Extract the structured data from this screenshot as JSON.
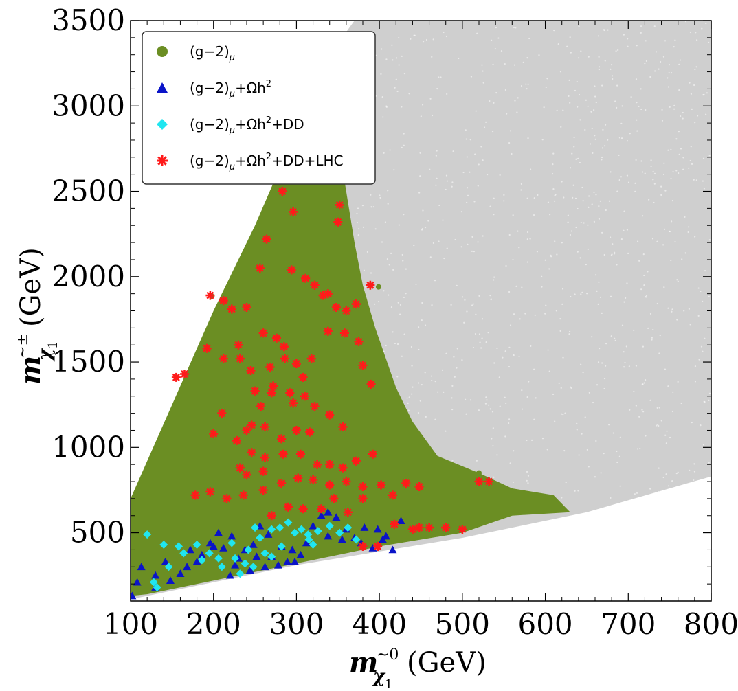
{
  "chart_data": {
    "type": "scatter",
    "title": "",
    "xlabel": {
      "main": "m",
      "sub": "χ",
      "subsub": "1",
      "sup": "~0",
      "unit": "(GeV)"
    },
    "ylabel": {
      "main": "m",
      "sub": "χ",
      "subsub": "1",
      "sup": "~±",
      "unit": "(GeV)"
    },
    "xlim": [
      100,
      800
    ],
    "ylim": [
      100,
      3500
    ],
    "xticks": [
      100,
      200,
      300,
      400,
      500,
      600,
      700,
      800
    ],
    "yticks": [
      500,
      1000,
      1500,
      2000,
      2500,
      3000,
      3500
    ],
    "grid": false,
    "legend_position": "top-left",
    "background_region": {
      "color": "#cfcfcf",
      "description_polygon": [
        [
          100,
          560
        ],
        [
          100,
          700
        ],
        [
          200,
          1700
        ],
        [
          290,
          2700
        ],
        [
          340,
          3300
        ],
        [
          370,
          3500
        ],
        [
          800,
          3500
        ],
        [
          800,
          830
        ],
        [
          650,
          620
        ],
        [
          500,
          470
        ],
        [
          300,
          310
        ],
        [
          100,
          110
        ]
      ]
    },
    "series": [
      {
        "name": "(g−2)μ",
        "marker": "circle",
        "color": "#6b8e23",
        "region_polygon": [
          [
            100,
            130
          ],
          [
            100,
            700
          ],
          [
            150,
            1250
          ],
          [
            200,
            1800
          ],
          [
            250,
            2300
          ],
          [
            290,
            2750
          ],
          [
            330,
            3200
          ],
          [
            350,
            3250
          ],
          [
            355,
            2650
          ],
          [
            370,
            2200
          ],
          [
            380,
            1950
          ],
          [
            395,
            1700
          ],
          [
            420,
            1350
          ],
          [
            440,
            1150
          ],
          [
            470,
            950
          ],
          [
            520,
            850
          ],
          [
            560,
            760
          ],
          [
            610,
            720
          ],
          [
            630,
            620
          ],
          [
            560,
            600
          ],
          [
            500,
            500
          ],
          [
            400,
            420
          ],
          [
            300,
            320
          ],
          [
            200,
            220
          ],
          [
            120,
            140
          ]
        ],
        "values": [
          [
            198,
            1885
          ],
          [
            212,
            1860
          ],
          [
            222,
            1800
          ],
          [
            240,
            1810
          ],
          [
            256,
            2040
          ],
          [
            264,
            2225
          ],
          [
            284,
            2500
          ],
          [
            297,
            2380
          ],
          [
            318,
            2830
          ],
          [
            347,
            2570
          ],
          [
            348,
            2830
          ],
          [
            350,
            2330
          ],
          [
            352,
            2420
          ],
          [
            294,
            2040
          ],
          [
            310,
            1985
          ],
          [
            322,
            1950
          ],
          [
            330,
            1890
          ],
          [
            337,
            1890
          ],
          [
            348,
            1830
          ],
          [
            360,
            1810
          ],
          [
            372,
            1840
          ],
          [
            389,
            1950
          ],
          [
            399,
            1940
          ],
          [
            210,
            1200
          ],
          [
            165,
            1430
          ],
          [
            155,
            1410
          ],
          [
            192,
            1580
          ],
          [
            210,
            1520
          ],
          [
            232,
            1520
          ],
          [
            200,
            1080
          ],
          [
            260,
            1670
          ],
          [
            276,
            1630
          ],
          [
            286,
            1525
          ],
          [
            300,
            1490
          ],
          [
            318,
            1520
          ],
          [
            338,
            1670
          ],
          [
            358,
            1670
          ],
          [
            375,
            1620
          ],
          [
            380,
            1480
          ],
          [
            390,
            1370
          ],
          [
            250,
            1330
          ],
          [
            272,
            1360
          ],
          [
            292,
            1320
          ],
          [
            310,
            1310
          ],
          [
            322,
            1230
          ],
          [
            340,
            1190
          ],
          [
            356,
            1130
          ],
          [
            300,
            1100
          ],
          [
            316,
            1090
          ],
          [
            285,
            960
          ],
          [
            305,
            960
          ],
          [
            325,
            910
          ],
          [
            340,
            900
          ],
          [
            356,
            880
          ],
          [
            372,
            930
          ],
          [
            392,
            960
          ],
          [
            178,
            720
          ],
          [
            196,
            740
          ],
          [
            216,
            700
          ],
          [
            236,
            720
          ],
          [
            260,
            750
          ],
          [
            282,
            790
          ],
          [
            302,
            820
          ],
          [
            320,
            810
          ],
          [
            340,
            780
          ],
          [
            360,
            800
          ],
          [
            380,
            770
          ],
          [
            402,
            770
          ],
          [
            416,
            730
          ],
          [
            432,
            790
          ],
          [
            448,
            770
          ],
          [
            460,
            530
          ],
          [
            480,
            530
          ],
          [
            500,
            530
          ],
          [
            520,
            850
          ],
          [
            532,
            800
          ],
          [
            418,
            540
          ],
          [
            440,
            520
          ],
          [
            448,
            520
          ],
          [
            270,
            1320
          ],
          [
            228,
            1040
          ],
          [
            257,
            1240
          ],
          [
            246,
            1130
          ]
        ]
      },
      {
        "name": "(g−2)μ+Ωh²",
        "marker": "triangle",
        "color": "#0a14c8",
        "values": [
          [
            102,
            130
          ],
          [
            108,
            210
          ],
          [
            113,
            300
          ],
          [
            130,
            250
          ],
          [
            142,
            330
          ],
          [
            160,
            260
          ],
          [
            172,
            400
          ],
          [
            180,
            330
          ],
          [
            196,
            440
          ],
          [
            206,
            500
          ],
          [
            212,
            410
          ],
          [
            222,
            480
          ],
          [
            230,
            350
          ],
          [
            238,
            400
          ],
          [
            248,
            430
          ],
          [
            256,
            540
          ],
          [
            266,
            490
          ],
          [
            278,
            310
          ],
          [
            289,
            330
          ],
          [
            298,
            330
          ],
          [
            312,
            440
          ],
          [
            320,
            540
          ],
          [
            330,
            600
          ],
          [
            338,
            620
          ],
          [
            348,
            590
          ],
          [
            360,
            520
          ],
          [
            370,
            470
          ],
          [
            378,
            440
          ],
          [
            392,
            410
          ],
          [
            404,
            460
          ],
          [
            416,
            400
          ],
          [
            426,
            570
          ],
          [
            220,
            250
          ],
          [
            244,
            280
          ],
          [
            262,
            300
          ],
          [
            270,
            360
          ],
          [
            295,
            400
          ],
          [
            305,
            370
          ],
          [
            338,
            480
          ],
          [
            355,
            460
          ],
          [
            382,
            530
          ],
          [
            398,
            520
          ],
          [
            408,
            480
          ],
          [
            130,
            180
          ],
          [
            148,
            220
          ],
          [
            168,
            300
          ],
          [
            186,
            370
          ],
          [
            200,
            420
          ],
          [
            226,
            310
          ],
          [
            252,
            360
          ],
          [
            282,
            420
          ]
        ]
      },
      {
        "name": "(g−2)μ+Ωh²+DD",
        "marker": "diamond",
        "color": "#20e6f0",
        "values": [
          [
            120,
            490
          ],
          [
            128,
            210
          ],
          [
            132,
            180
          ],
          [
            140,
            430
          ],
          [
            146,
            300
          ],
          [
            158,
            420
          ],
          [
            164,
            380
          ],
          [
            180,
            430
          ],
          [
            186,
            340
          ],
          [
            195,
            380
          ],
          [
            206,
            350
          ],
          [
            210,
            300
          ],
          [
            222,
            440
          ],
          [
            226,
            350
          ],
          [
            238,
            320
          ],
          [
            242,
            400
          ],
          [
            250,
            530
          ],
          [
            256,
            470
          ],
          [
            262,
            380
          ],
          [
            270,
            520
          ],
          [
            280,
            530
          ],
          [
            290,
            560
          ],
          [
            298,
            500
          ],
          [
            306,
            520
          ],
          [
            314,
            490
          ],
          [
            326,
            510
          ],
          [
            340,
            540
          ],
          [
            352,
            500
          ],
          [
            362,
            530
          ],
          [
            372,
            460
          ],
          [
            315,
            460
          ],
          [
            320,
            430
          ],
          [
            232,
            260
          ],
          [
            248,
            300
          ],
          [
            270,
            360
          ],
          [
            282,
            420
          ]
        ]
      },
      {
        "name": "(g−2)μ+Ωh²+DD+LHC",
        "marker": "star",
        "color": "#ff1a1a",
        "values": [
          [
            196,
            1890
          ],
          [
            212,
            1860
          ],
          [
            222,
            1810
          ],
          [
            240,
            1820
          ],
          [
            256,
            2050
          ],
          [
            264,
            2220
          ],
          [
            283,
            2500
          ],
          [
            296,
            2380
          ],
          [
            318,
            2830
          ],
          [
            346,
            2570
          ],
          [
            348,
            2830
          ],
          [
            350,
            2320
          ],
          [
            352,
            2420
          ],
          [
            294,
            2040
          ],
          [
            311,
            1990
          ],
          [
            322,
            1950
          ],
          [
            332,
            1890
          ],
          [
            338,
            1900
          ],
          [
            348,
            1820
          ],
          [
            360,
            1800
          ],
          [
            372,
            1840
          ],
          [
            389,
            1950
          ],
          [
            210,
            1200
          ],
          [
            165,
            1430
          ],
          [
            155,
            1410
          ],
          [
            192,
            1580
          ],
          [
            212,
            1520
          ],
          [
            232,
            1520
          ],
          [
            200,
            1080
          ],
          [
            260,
            1670
          ],
          [
            276,
            1640
          ],
          [
            286,
            1520
          ],
          [
            300,
            1490
          ],
          [
            318,
            1520
          ],
          [
            338,
            1680
          ],
          [
            358,
            1670
          ],
          [
            375,
            1620
          ],
          [
            380,
            1480
          ],
          [
            390,
            1370
          ],
          [
            250,
            1330
          ],
          [
            272,
            1360
          ],
          [
            292,
            1320
          ],
          [
            310,
            1300
          ],
          [
            322,
            1240
          ],
          [
            340,
            1190
          ],
          [
            356,
            1120
          ],
          [
            300,
            1100
          ],
          [
            316,
            1090
          ],
          [
            284,
            960
          ],
          [
            305,
            960
          ],
          [
            325,
            900
          ],
          [
            340,
            900
          ],
          [
            356,
            880
          ],
          [
            372,
            920
          ],
          [
            392,
            960
          ],
          [
            178,
            720
          ],
          [
            196,
            740
          ],
          [
            216,
            700
          ],
          [
            236,
            720
          ],
          [
            260,
            750
          ],
          [
            282,
            790
          ],
          [
            302,
            820
          ],
          [
            320,
            810
          ],
          [
            340,
            780
          ],
          [
            360,
            800
          ],
          [
            380,
            770
          ],
          [
            402,
            780
          ],
          [
            416,
            720
          ],
          [
            432,
            790
          ],
          [
            448,
            770
          ],
          [
            460,
            530
          ],
          [
            480,
            530
          ],
          [
            500,
            520
          ],
          [
            520,
            800
          ],
          [
            532,
            800
          ],
          [
            418,
            550
          ],
          [
            440,
            520
          ],
          [
            448,
            530
          ],
          [
            270,
            1320
          ],
          [
            228,
            1040
          ],
          [
            246,
            1130
          ],
          [
            257,
            1240
          ],
          [
            230,
            1600
          ],
          [
            245,
            1450
          ],
          [
            268,
            1470
          ],
          [
            285,
            1590
          ],
          [
            308,
            1410
          ],
          [
            296,
            1260
          ],
          [
            262,
            1120
          ],
          [
            282,
            1050
          ],
          [
            246,
            970
          ],
          [
            232,
            880
          ],
          [
            262,
            940
          ],
          [
            290,
            650
          ],
          [
            308,
            640
          ],
          [
            330,
            640
          ],
          [
            345,
            700
          ],
          [
            270,
            600
          ],
          [
            362,
            620
          ],
          [
            380,
            700
          ],
          [
            380,
            420
          ],
          [
            398,
            420
          ],
          [
            240,
            840
          ],
          [
            260,
            860
          ],
          [
            240,
            1100
          ]
        ]
      }
    ]
  },
  "legend": {
    "entries": [
      {
        "label": "(g−2)",
        "sub": "μ",
        "tail": ""
      },
      {
        "label": "(g−2)",
        "sub": "μ",
        "tail": "+Ωh",
        "sup": "2",
        "tail2": ""
      },
      {
        "label": "(g−2)",
        "sub": "μ",
        "tail": "+Ωh",
        "sup": "2",
        "tail2": "+DD"
      },
      {
        "label": "(g−2)",
        "sub": "μ",
        "tail": "+Ωh",
        "sup": "2",
        "tail2": "+DD+LHC"
      }
    ]
  }
}
